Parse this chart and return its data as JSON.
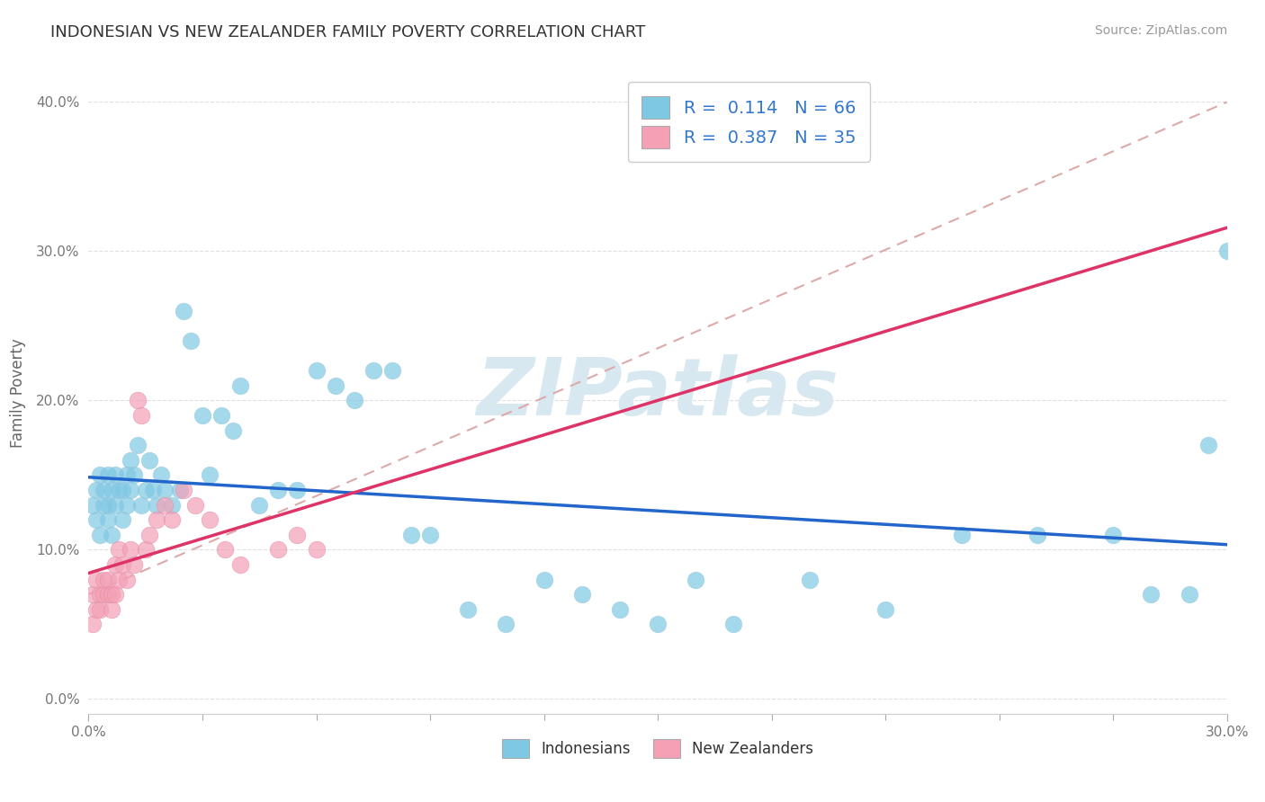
{
  "title": "INDONESIAN VS NEW ZEALANDER FAMILY POVERTY CORRELATION CHART",
  "source": "Source: ZipAtlas.com",
  "ylabel": "Family Poverty",
  "yticks_labels": [
    "0.0%",
    "10.0%",
    "20.0%",
    "30.0%",
    "40.0%"
  ],
  "ytick_vals": [
    0.0,
    0.1,
    0.2,
    0.3,
    0.4
  ],
  "xlim": [
    0.0,
    0.3
  ],
  "ylim": [
    -0.01,
    0.42
  ],
  "legend_label1": "Indonesians",
  "legend_label2": "New Zealanders",
  "blue_color": "#7ec8e3",
  "pink_color": "#f4a0b5",
  "blue_line_color": "#2266cc",
  "pink_line_color": "#dd3366",
  "dash_line_color": "#ddaaaa",
  "watermark_color": "#d8e8f0",
  "watermark": "ZIPatlas",
  "r_n_color": "#3377cc",
  "blue_x": [
    0.001,
    0.002,
    0.002,
    0.003,
    0.003,
    0.004,
    0.004,
    0.005,
    0.005,
    0.005,
    0.006,
    0.006,
    0.007,
    0.007,
    0.008,
    0.009,
    0.009,
    0.01,
    0.01,
    0.011,
    0.011,
    0.012,
    0.013,
    0.014,
    0.015,
    0.016,
    0.017,
    0.018,
    0.019,
    0.02,
    0.022,
    0.024,
    0.025,
    0.027,
    0.03,
    0.032,
    0.035,
    0.038,
    0.04,
    0.045,
    0.05,
    0.055,
    0.06,
    0.065,
    0.07,
    0.075,
    0.08,
    0.085,
    0.09,
    0.1,
    0.11,
    0.12,
    0.13,
    0.14,
    0.15,
    0.16,
    0.17,
    0.19,
    0.21,
    0.23,
    0.25,
    0.27,
    0.28,
    0.29,
    0.295,
    0.3
  ],
  "blue_y": [
    0.13,
    0.12,
    0.14,
    0.11,
    0.15,
    0.13,
    0.14,
    0.12,
    0.13,
    0.15,
    0.11,
    0.14,
    0.13,
    0.15,
    0.14,
    0.12,
    0.14,
    0.13,
    0.15,
    0.14,
    0.16,
    0.15,
    0.17,
    0.13,
    0.14,
    0.16,
    0.14,
    0.13,
    0.15,
    0.14,
    0.13,
    0.14,
    0.26,
    0.24,
    0.19,
    0.15,
    0.19,
    0.18,
    0.21,
    0.13,
    0.14,
    0.14,
    0.22,
    0.21,
    0.2,
    0.22,
    0.22,
    0.11,
    0.11,
    0.06,
    0.05,
    0.08,
    0.07,
    0.06,
    0.05,
    0.08,
    0.05,
    0.08,
    0.06,
    0.11,
    0.11,
    0.11,
    0.07,
    0.07,
    0.17,
    0.3
  ],
  "pink_x": [
    0.001,
    0.001,
    0.002,
    0.002,
    0.003,
    0.003,
    0.004,
    0.004,
    0.005,
    0.005,
    0.006,
    0.006,
    0.007,
    0.007,
    0.008,
    0.008,
    0.009,
    0.01,
    0.011,
    0.012,
    0.013,
    0.014,
    0.015,
    0.016,
    0.018,
    0.02,
    0.022,
    0.025,
    0.028,
    0.032,
    0.036,
    0.04,
    0.05,
    0.055,
    0.06
  ],
  "pink_y": [
    0.07,
    0.05,
    0.06,
    0.08,
    0.07,
    0.06,
    0.07,
    0.08,
    0.07,
    0.08,
    0.06,
    0.07,
    0.07,
    0.09,
    0.08,
    0.1,
    0.09,
    0.08,
    0.1,
    0.09,
    0.2,
    0.19,
    0.1,
    0.11,
    0.12,
    0.13,
    0.12,
    0.14,
    0.13,
    0.12,
    0.1,
    0.09,
    0.1,
    0.11,
    0.1
  ]
}
